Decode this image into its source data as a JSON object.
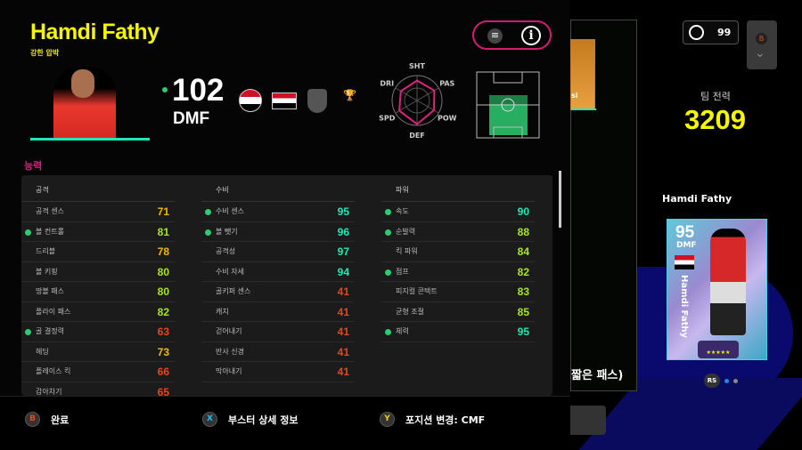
{
  "player": {
    "name": "Hamdi Fathy",
    "playstyle": "강한 압박",
    "overall": "102",
    "position": "DMF"
  },
  "header_icons": [
    "menu-icon",
    "info-icon"
  ],
  "radar": {
    "labels": [
      "SHT",
      "PAS",
      "POW",
      "DEF",
      "SPD",
      "DRI"
    ]
  },
  "section_title": "능력",
  "stats": [
    {
      "title": "공격",
      "rows": [
        {
          "label": "공격 센스",
          "value": 71,
          "dot": false
        },
        {
          "label": "볼 컨트롤",
          "value": 81,
          "dot": true
        },
        {
          "label": "드리블",
          "value": 78,
          "dot": false
        },
        {
          "label": "볼 키핑",
          "value": 80,
          "dot": false
        },
        {
          "label": "땅볼 패스",
          "value": 80,
          "dot": false
        },
        {
          "label": "플라이 패스",
          "value": 82,
          "dot": false
        },
        {
          "label": "골 결정력",
          "value": 63,
          "dot": true
        },
        {
          "label": "헤딩",
          "value": 73,
          "dot": false
        },
        {
          "label": "플레이스 킥",
          "value": 66,
          "dot": false
        },
        {
          "label": "감아차기",
          "value": 65,
          "dot": false
        }
      ]
    },
    {
      "title": "수비",
      "rows": [
        {
          "label": "수비 센스",
          "value": 95,
          "dot": true
        },
        {
          "label": "볼 뺏기",
          "value": 96,
          "dot": true
        },
        {
          "label": "공격성",
          "value": 97,
          "dot": false
        },
        {
          "label": "수비 자세",
          "value": 94,
          "dot": false
        },
        {
          "label": "골키퍼 센스",
          "value": 41,
          "dot": false
        },
        {
          "label": "캐치",
          "value": 41,
          "dot": false
        },
        {
          "label": "걷어내기",
          "value": 41,
          "dot": false
        },
        {
          "label": "반사 신경",
          "value": 41,
          "dot": false
        },
        {
          "label": "막아내기",
          "value": 41,
          "dot": false
        }
      ]
    },
    {
      "title": "파워",
      "rows": [
        {
          "label": "속도",
          "value": 90,
          "dot": true
        },
        {
          "label": "순발력",
          "value": 88,
          "dot": true
        },
        {
          "label": "킥 파워",
          "value": 84,
          "dot": false
        },
        {
          "label": "점프",
          "value": 82,
          "dot": true
        },
        {
          "label": "피지컬 콘택트",
          "value": 83,
          "dot": false
        },
        {
          "label": "균형 조절",
          "value": 85,
          "dot": false
        },
        {
          "label": "체력",
          "value": 95,
          "dot": true
        }
      ]
    }
  ],
  "colors": {
    "teal": "#1de9b6",
    "green": "#a8e61d",
    "yellow": "#f5b800",
    "red": "#e8461e",
    "accent": "#e0207a",
    "name": "#f5f500"
  },
  "bottom_buttons": [
    {
      "key": "B",
      "label": "완료",
      "key_color": "#e8461e"
    },
    {
      "key": "X",
      "label": "부스터 상세 정보",
      "key_color": "#29b6f6"
    },
    {
      "key": "Y",
      "label": "포지션 변경: CMF",
      "key_color": "#f5d000"
    }
  ],
  "right": {
    "mini_card_name": "si",
    "panel_text": "짧은 패스)",
    "timer": "99",
    "collapse_key": "B",
    "team_power_label": "팀 전력",
    "team_power": "3209",
    "card_player_name": "Hamdi Fathy",
    "card": {
      "rating": "95",
      "position": "DMF",
      "vertical_name": "Hamdi Fathy"
    },
    "pager_key": "RS"
  }
}
